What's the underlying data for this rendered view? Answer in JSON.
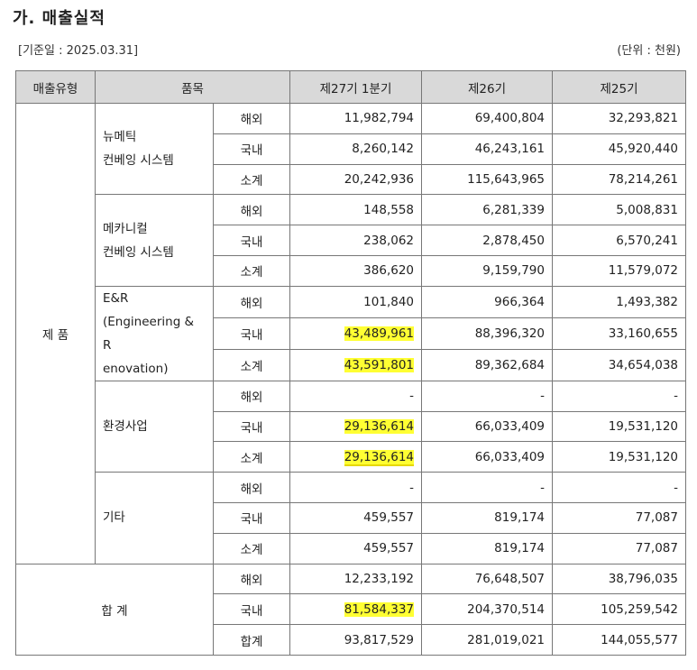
{
  "title": "가. 매출실적",
  "base_date": "[기준일 : 2025.03.31]",
  "unit": "(단위 : 천원)",
  "headers": [
    "매출유형",
    "품목",
    "제27기 1분기",
    "제26기",
    "제25기"
  ],
  "category_product": "제 품",
  "category_total": "합 계",
  "groups": [
    {
      "name_lines": [
        "뉴메틱",
        "컨베잉 시스템"
      ],
      "rows": [
        {
          "region": "해외",
          "v27": "11,982,794",
          "v26": "69,400,804",
          "v25": "32,293,821"
        },
        {
          "region": "국내",
          "v27": "8,260,142",
          "v26": "46,243,161",
          "v25": "45,920,440"
        },
        {
          "region": "소계",
          "v27": "20,242,936",
          "v26": "115,643,965",
          "v25": "78,214,261"
        }
      ]
    },
    {
      "name_lines": [
        "메카니컬",
        "컨베잉 시스템"
      ],
      "rows": [
        {
          "region": "해외",
          "v27": "148,558",
          "v26": "6,281,339",
          "v25": "5,008,831"
        },
        {
          "region": "국내",
          "v27": "238,062",
          "v26": "2,878,450",
          "v25": "6,570,241"
        },
        {
          "region": "소계",
          "v27": "386,620",
          "v26": "9,159,790",
          "v25": "11,579,072"
        }
      ]
    },
    {
      "name_lines": [
        "E&R",
        "(Engineering & R",
        "enovation)"
      ],
      "rows": [
        {
          "region": "해외",
          "v27": "101,840",
          "v26": "966,364",
          "v25": "1,493,382"
        },
        {
          "region": "국내",
          "v27": "43,489,961",
          "v26": "88,396,320",
          "v25": "33,160,655"
        },
        {
          "region": "소계",
          "v27": "43,591,801",
          "v26": "89,362,684",
          "v25": "34,654,038"
        }
      ]
    },
    {
      "name_lines": [
        "환경사업"
      ],
      "rows": [
        {
          "region": "해외",
          "v27": "-",
          "v26": "-",
          "v25": "-"
        },
        {
          "region": "국내",
          "v27": "29,136,614",
          "v26": "66,033,409",
          "v25": "19,531,120"
        },
        {
          "region": "소계",
          "v27": "29,136,614",
          "v26": "66,033,409",
          "v25": "19,531,120"
        }
      ]
    },
    {
      "name_lines": [
        "기타"
      ],
      "rows": [
        {
          "region": "해외",
          "v27": "-",
          "v26": "-",
          "v25": "-"
        },
        {
          "region": "국내",
          "v27": "459,557",
          "v26": "819,174",
          "v25": "77,087"
        },
        {
          "region": "소계",
          "v27": "459,557",
          "v26": "819,174",
          "v25": "77,087"
        }
      ]
    }
  ],
  "total_rows": [
    {
      "region": "해외",
      "v27": "12,233,192",
      "v26": "76,648,507",
      "v25": "38,796,035"
    },
    {
      "region": "국내",
      "v27": "81,584,337",
      "v26": "204,370,514",
      "v25": "105,259,542"
    },
    {
      "region": "합계",
      "v27": "93,817,529",
      "v26": "281,019,021",
      "v25": "144,055,577"
    }
  ],
  "highlight_color": "#ffff33"
}
